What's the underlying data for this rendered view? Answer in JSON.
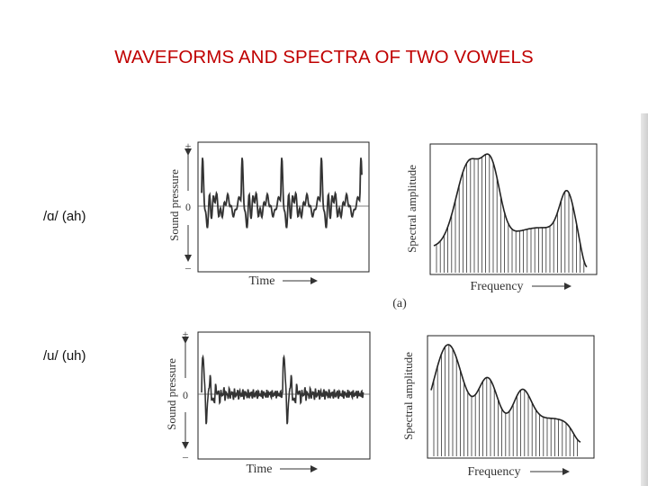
{
  "title": "WAVEFORMS AND SPECTRA OF TWO VOWELS",
  "rows": [
    {
      "label": "/ɑ/  (ah)",
      "waveform": {
        "y_axis_label": "Sound pressure",
        "plus": "+",
        "zero": "0",
        "minus": "–",
        "x_axis_label": "Time"
      },
      "spectrum": {
        "y_axis_label": "Spectral amplitude",
        "x_axis_label": "Frequency",
        "peaks": "two close peaks low, one peak high",
        "caption": "(a)"
      }
    },
    {
      "label": "/u/  (uh)",
      "waveform": {
        "y_axis_label": "Sound pressure",
        "plus": "+",
        "zero": "0",
        "minus": "–",
        "x_axis_label": "Time"
      },
      "spectrum": {
        "y_axis_label": "Spectral amplitude",
        "x_axis_label": "Frequency",
        "peaks": "one low peak, two smaller peaks"
      }
    }
  ]
}
